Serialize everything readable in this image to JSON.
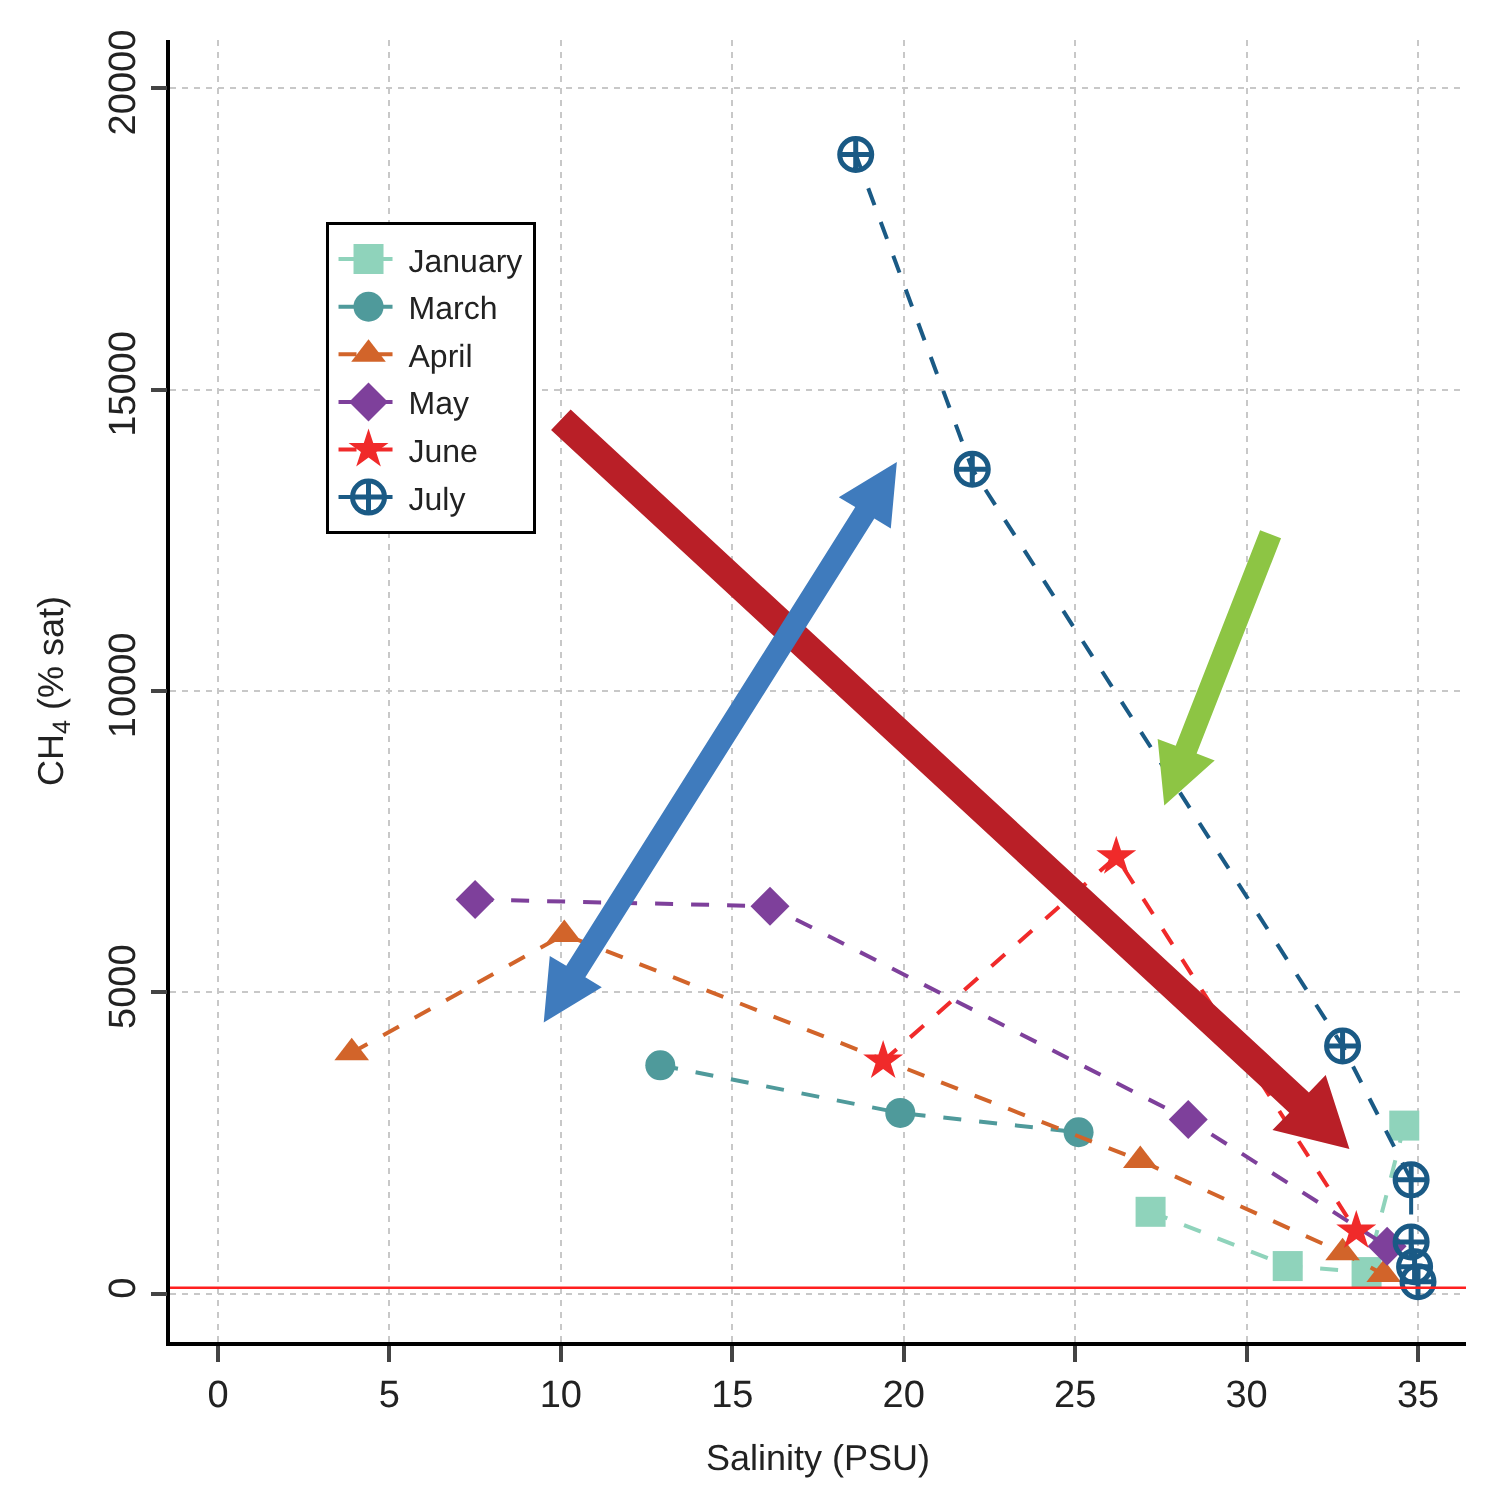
{
  "chart_data": {
    "type": "line",
    "xlabel": "Salinity (PSU)",
    "ylabel": "CH$_{4}$ (% sat)",
    "xlim": [
      -1.4,
      36.4
    ],
    "ylim": [
      -800,
      20800
    ],
    "xticks": [
      0,
      5,
      10,
      15,
      20,
      25,
      30,
      35
    ],
    "yticks": [
      0,
      5000,
      10000,
      15000,
      20000
    ],
    "grid": true,
    "legend": "top left",
    "line_style": "dashed",
    "ref_lines": [
      {
        "axis": "y",
        "value": 100,
        "color": "#ff2020"
      }
    ],
    "series": [
      {
        "name": "January",
        "color": "#8fd3bb",
        "marker": "square",
        "x": [
          27.2,
          31.2,
          33.5,
          34.6
        ],
        "values": [
          1360,
          460,
          360,
          2790
        ]
      },
      {
        "name": "March",
        "color": "#4f9a9b",
        "marker": "circle",
        "x": [
          12.9,
          19.9,
          25.1
        ],
        "values": [
          3790,
          3000,
          2680
        ]
      },
      {
        "name": "April",
        "color": "#d2642a",
        "marker": "triangle",
        "x": [
          3.9,
          10.1,
          26.9,
          32.8,
          34.0
        ],
        "values": [
          4000,
          5960,
          2210,
          680,
          320
        ]
      },
      {
        "name": "May",
        "color": "#7e409b",
        "marker": "diamond",
        "x": [
          7.5,
          16.1,
          28.3,
          34.1
        ],
        "values": [
          6540,
          6430,
          2890,
          790
        ]
      },
      {
        "name": "June",
        "color": "#f02a2a",
        "marker": "star",
        "x": [
          19.4,
          26.2,
          33.2
        ],
        "values": [
          3860,
          7250,
          1040
        ]
      },
      {
        "name": "July",
        "color": "#1a5a85",
        "marker": "cross",
        "x": [
          18.6,
          22.0,
          32.8,
          34.8,
          34.8,
          34.9,
          35.0
        ],
        "values": [
          18900,
          13680,
          4110,
          1890,
          860,
          450,
          200
        ]
      }
    ]
  }
}
